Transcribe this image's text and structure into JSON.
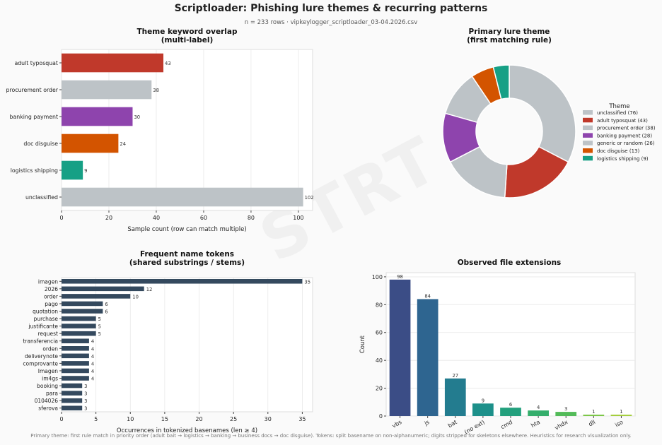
{
  "header": {
    "title": "Scriptloader: Phishing lure themes & recurring patterns",
    "subtitle": "n = 233 rows  ·  vipkeylogger_scriptloader_03-04.2026.csv"
  },
  "watermark": "STRT",
  "footer": "Primary theme: first rule match in priority order (adult bait → logistics → banking → business docs → doc disguise). Tokens: split basename on non-alphanumeric; digits stripped for skeletons elsewhere. Heuristics for research visualization only.",
  "colors": {
    "red": "#c0392b",
    "gray": "#bdc3c7",
    "purple": "#8e44ad",
    "orange": "#d35400",
    "teal": "#16a085",
    "navy": "#34495e"
  },
  "chart_data": [
    {
      "type": "bar",
      "orientation": "horizontal",
      "title": "Theme keyword overlap\n(multi-label)",
      "categories": [
        "adult typosquat",
        "procurement order",
        "banking payment",
        "doc disguise",
        "logistics shipping",
        "unclassified"
      ],
      "values": [
        43,
        38,
        30,
        24,
        9,
        102
      ],
      "colors": [
        "#c0392b",
        "#bdc3c7",
        "#8e44ad",
        "#d35400",
        "#16a085",
        "#bdc3c7"
      ],
      "xlabel": "Sample count (row can match multiple)",
      "xlim": [
        0,
        106
      ],
      "xticks": [
        0,
        20,
        40,
        60,
        80,
        100
      ],
      "grid": "x"
    },
    {
      "type": "pie",
      "title": "Primary lure theme\n(first matching rule)",
      "legend_title": "Theme",
      "legend_placement": "right",
      "donut": true,
      "categories": [
        "unclassified",
        "adult typosquat",
        "procurement order",
        "banking payment",
        "generic or random",
        "doc disguise",
        "logistics shipping"
      ],
      "values": [
        76,
        43,
        38,
        28,
        26,
        13,
        9
      ],
      "legend_labels": [
        "unclassified (76)",
        "adult typosquat (43)",
        "procurement order (38)",
        "banking payment (28)",
        "generic or random (26)",
        "doc disguise (13)",
        "logistics shipping (9)"
      ],
      "colors": [
        "#bdc3c7",
        "#c0392b",
        "#bdc3c7",
        "#8e44ad",
        "#bdc3c7",
        "#d35400",
        "#16a085"
      ]
    },
    {
      "type": "bar",
      "orientation": "horizontal",
      "title": "Frequent name tokens\n(shared substrings / stems)",
      "categories": [
        "imagen",
        "2026",
        "order",
        "pago",
        "quotation",
        "purchase",
        "justificante",
        "request",
        "transferencia",
        "orden",
        "deliverynote",
        "comprovante",
        "Imagen",
        "im4gs",
        "booking",
        "para",
        "0104026",
        "sferova"
      ],
      "values": [
        35,
        12,
        10,
        6,
        6,
        5,
        5,
        5,
        4,
        4,
        4,
        4,
        4,
        4,
        3,
        3,
        3,
        3
      ],
      "colors": [
        "#34495e"
      ],
      "xlabel": "Occurrences in tokenized basenames (len ≥ 4)",
      "xlim": [
        0,
        36.5
      ],
      "xticks": [
        0,
        5,
        10,
        15,
        20,
        25,
        30,
        35
      ],
      "grid": "x"
    },
    {
      "type": "bar",
      "orientation": "vertical",
      "title": "Observed file extensions",
      "categories": [
        "vbs",
        "js",
        "bat",
        "(no ext)",
        "cmd",
        "hta",
        "vhdx",
        "dll",
        "iso"
      ],
      "values": [
        98,
        84,
        27,
        9,
        6,
        4,
        3,
        1,
        1
      ],
      "colors": [
        "#3b4d86",
        "#2e6590",
        "#237c8f",
        "#1d908a",
        "#23a07d",
        "#35ae6c",
        "#53bb59",
        "#7cc647",
        "#a4ce3d"
      ],
      "ylabel": "Count",
      "ylim": [
        0,
        103
      ],
      "yticks": [
        0,
        20,
        40,
        60,
        80,
        100
      ],
      "grid": "y"
    }
  ]
}
